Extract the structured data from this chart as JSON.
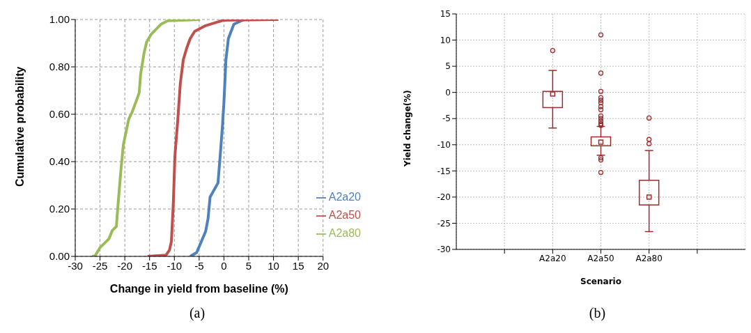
{
  "chart_data": [
    {
      "type": "line",
      "xlabel": "Change in yield from baseline (%)",
      "ylabel": "Cumulative probability",
      "xlim": [
        -30,
        20
      ],
      "xticks": [
        -30,
        -25,
        -20,
        -15,
        -10,
        -5,
        0,
        5,
        10,
        15,
        20
      ],
      "ylim": [
        0,
        1
      ],
      "yticks": [
        {
          "value": 0,
          "label": "0.00"
        },
        {
          "value": 0.2,
          "label": "0.20"
        },
        {
          "value": 0.4,
          "label": "0.40"
        },
        {
          "value": 0.6,
          "label": "0.60"
        },
        {
          "value": 0.8,
          "label": "0.80"
        },
        {
          "value": 1,
          "label": "1.00"
        }
      ],
      "grid": true,
      "legend": "bottom right",
      "line_style": "solid",
      "marker": "none",
      "annotations": [
        "(a)"
      ],
      "series": [
        {
          "name": "A2a20",
          "color": "#4f81bd",
          "x": [
            -6.8,
            -5.5,
            -3.7,
            -3.2,
            -2.8,
            -1.2,
            -0.7,
            -0.3,
            0.0,
            0.4,
            0.9,
            2.0,
            4.1
          ],
          "values": [
            0,
            0.016,
            0.105,
            0.16,
            0.25,
            0.31,
            0.44,
            0.55,
            0.65,
            0.83,
            0.92,
            0.98,
            1.0
          ]
        },
        {
          "name": "A2a50",
          "color": "#c0504d",
          "x": [
            -15.4,
            -11.7,
            -11.0,
            -10.6,
            -10.2,
            -9.9,
            -9.3,
            -8.8,
            -8.2,
            -7.5,
            -6.8,
            -5.9,
            -3.7,
            -1.2,
            -0.1,
            11.0
          ],
          "values": [
            0,
            0.005,
            0.026,
            0.063,
            0.23,
            0.42,
            0.58,
            0.73,
            0.83,
            0.88,
            0.92,
            0.95,
            0.974,
            0.99,
            0.997,
            1.0
          ]
        },
        {
          "name": "A2a80",
          "color": "#9bbb59",
          "x": [
            -26.6,
            -26.0,
            -25.0,
            -23.2,
            -22.5,
            -21.7,
            -21.4,
            -20.8,
            -20.3,
            -19.2,
            -18.5,
            -17.1,
            -16.8,
            -16.1,
            -15.6,
            -14.7,
            -12.7,
            -11.3,
            -4.8
          ],
          "values": [
            0,
            0.002,
            0.037,
            0.074,
            0.11,
            0.126,
            0.21,
            0.36,
            0.47,
            0.58,
            0.61,
            0.69,
            0.77,
            0.86,
            0.905,
            0.937,
            0.98,
            0.995,
            1.0
          ]
        }
      ]
    },
    {
      "type": "box",
      "xlabel": "Scenario",
      "ylabel": "Yield change(%)",
      "categories": [
        null,
        "A2a20",
        "A2a50",
        "A2a80",
        null
      ],
      "ylim": [
        -30,
        15
      ],
      "yticks": [
        -30,
        -25,
        -20,
        -15,
        -10,
        -5,
        0,
        5,
        10,
        15
      ],
      "grid": true,
      "annotations": [
        "(b)"
      ],
      "series": [
        {
          "color": "#9e2a2b",
          "boxes": [
            null,
            {
              "low": -6.8,
              "q1": -2.9,
              "median": -0.3,
              "q3": 0.2,
              "high": 4.2,
              "outliers": [
                8
              ]
            },
            {
              "low": -12,
              "q1": -10.2,
              "median": -9.5,
              "q3": -8.5,
              "high": -6.5,
              "outliers": [
                11,
                3.7,
                0.2,
                -1,
                -1.5,
                -2,
                -2.7,
                -3.3,
                -4.5,
                -5,
                -5.5,
                -6,
                -6.3,
                -12.5,
                -12.9,
                -15.3
              ]
            },
            {
              "low": -26.6,
              "q1": -21.5,
              "median": -20,
              "q3": -16.8,
              "high": -11.1,
              "outliers": [
                -4.9,
                -9,
                -9.8
              ]
            },
            null
          ]
        }
      ]
    }
  ]
}
